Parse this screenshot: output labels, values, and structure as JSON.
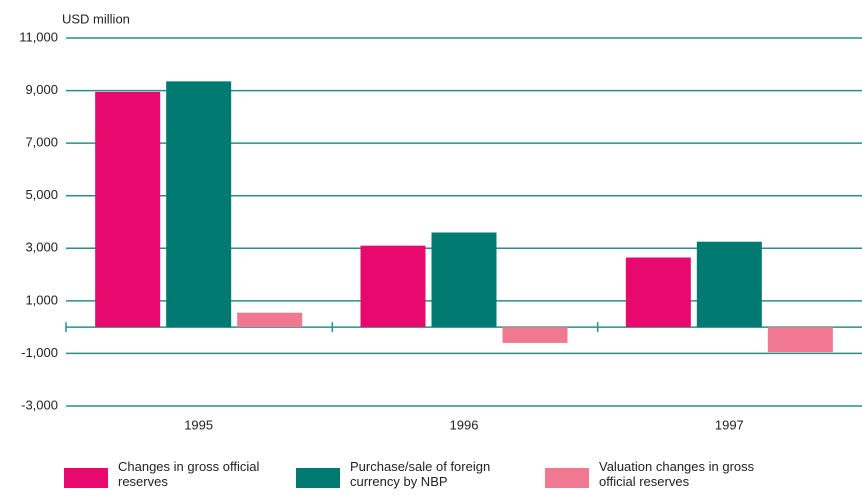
{
  "chart_data": {
    "type": "bar",
    "y_axis_label": "USD million",
    "categories": [
      "1995",
      "1996",
      "1997"
    ],
    "series": [
      {
        "name": "Changes in gross official reserves",
        "color": "#e8096e",
        "values": [
          8950,
          3100,
          2650
        ]
      },
      {
        "name": "Purchase/sale of foreign currency by NBP",
        "color": "#007a70",
        "values": [
          9350,
          3600,
          3250
        ]
      },
      {
        "name": "Valuation changes in gross official reserves",
        "color": "#f07890",
        "values": [
          550,
          -600,
          -950
        ]
      }
    ],
    "ylim": [
      -3000,
      11000
    ],
    "yticks": [
      {
        "value": -3000,
        "label": "-3,000"
      },
      {
        "value": -1000,
        "label": "-1,000"
      },
      {
        "value": 1000,
        "label": "1,000"
      },
      {
        "value": 3000,
        "label": "3,000"
      },
      {
        "value": 5000,
        "label": "5,000"
      },
      {
        "value": 7000,
        "label": "7,000"
      },
      {
        "value": 9000,
        "label": "9,000"
      },
      {
        "value": 11000,
        "label": "11,000"
      }
    ],
    "grid": true
  }
}
